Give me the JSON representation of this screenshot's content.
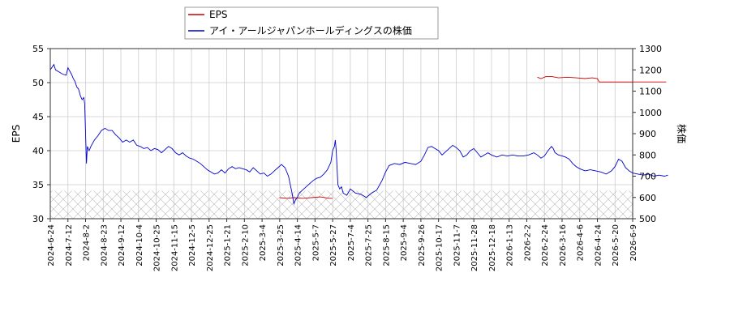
{
  "chart_data": {
    "type": "line",
    "title": "",
    "legend_position": "top-left",
    "grid": true,
    "x_tick_labels": [
      "2024-6-24",
      "2024-7-12",
      "2024-8-2",
      "2024-8-23",
      "2024-9-12",
      "2024-10-4",
      "2024-10-25",
      "2024-11-15",
      "2024-12-5",
      "2024-12-25",
      "2025-1-21",
      "2025-2-10",
      "2025-3-4",
      "2025-3-25",
      "2025-4-14",
      "2025-5-7",
      "2025-5-27",
      "2025-7-4",
      "2025-7-25",
      "2025-8-15",
      "2025-9-4",
      "2025-9-26",
      "2025-10-17",
      "2025-11-7",
      "2025-11-28",
      "2025-12-18",
      "2026-1-13",
      "2026-2-2",
      "2026-2-24",
      "2026-3-16",
      "2026-4-6",
      "2026-4-24",
      "2026-5-20",
      "2026-6-9"
    ],
    "y_left": {
      "label": "EPS",
      "ylim": [
        30,
        55
      ],
      "ticks": [
        30,
        35,
        40,
        45,
        50,
        55
      ]
    },
    "y_right": {
      "label": "株価",
      "ylim": [
        500,
        1300
      ],
      "ticks": [
        500,
        600,
        700,
        800,
        900,
        1000,
        1100,
        1200,
        1300
      ]
    },
    "series": [
      {
        "name": "EPS",
        "axis": "left",
        "color": "#cc0000",
        "points": [
          [
            13.0,
            33.1
          ],
          [
            13.4,
            33.0
          ],
          [
            13.8,
            33.1
          ],
          [
            14.3,
            33.0
          ],
          [
            14.8,
            33.1
          ],
          [
            15.3,
            33.2
          ],
          [
            15.8,
            33.0
          ],
          [
            16.0,
            33.0
          ],
          [
            27.6,
            50.8
          ],
          [
            27.8,
            50.6
          ],
          [
            28.1,
            50.9
          ],
          [
            28.4,
            50.9
          ],
          [
            28.8,
            50.7
          ],
          [
            29.3,
            50.8
          ],
          [
            29.8,
            50.7
          ],
          [
            30.3,
            50.6
          ],
          [
            30.7,
            50.7
          ],
          [
            31.0,
            50.6
          ],
          [
            31.1,
            50.1
          ],
          [
            32.0,
            50.1
          ],
          [
            33.0,
            50.1
          ],
          [
            34.0,
            50.1
          ],
          [
            34.9,
            50.1
          ]
        ]
      },
      {
        "name": "アイ・アールジャパンホールディングスの株価",
        "axis": "right",
        "color": "#0000cc",
        "points": [
          [
            0.0,
            1200
          ],
          [
            0.2,
            1225
          ],
          [
            0.3,
            1200
          ],
          [
            0.5,
            1190
          ],
          [
            0.7,
            1180
          ],
          [
            0.9,
            1175
          ],
          [
            1.0,
            1210
          ],
          [
            1.1,
            1195
          ],
          [
            1.2,
            1180
          ],
          [
            1.3,
            1160
          ],
          [
            1.4,
            1145
          ],
          [
            1.5,
            1120
          ],
          [
            1.6,
            1110
          ],
          [
            1.7,
            1080
          ],
          [
            1.8,
            1060
          ],
          [
            1.9,
            1070
          ],
          [
            1.95,
            1040
          ],
          [
            2.0,
            900
          ],
          [
            2.05,
            760
          ],
          [
            2.1,
            840
          ],
          [
            2.2,
            820
          ],
          [
            2.3,
            840
          ],
          [
            2.5,
            870
          ],
          [
            2.7,
            890
          ],
          [
            2.9,
            915
          ],
          [
            3.1,
            925
          ],
          [
            3.3,
            915
          ],
          [
            3.5,
            915
          ],
          [
            3.7,
            895
          ],
          [
            3.9,
            880
          ],
          [
            4.1,
            860
          ],
          [
            4.3,
            870
          ],
          [
            4.5,
            860
          ],
          [
            4.7,
            870
          ],
          [
            4.9,
            845
          ],
          [
            5.1,
            840
          ],
          [
            5.3,
            830
          ],
          [
            5.5,
            835
          ],
          [
            5.7,
            820
          ],
          [
            5.9,
            830
          ],
          [
            6.1,
            825
          ],
          [
            6.3,
            810
          ],
          [
            6.5,
            825
          ],
          [
            6.7,
            840
          ],
          [
            6.9,
            830
          ],
          [
            7.1,
            810
          ],
          [
            7.3,
            800
          ],
          [
            7.5,
            810
          ],
          [
            7.7,
            795
          ],
          [
            7.9,
            785
          ],
          [
            8.1,
            780
          ],
          [
            8.3,
            770
          ],
          [
            8.5,
            760
          ],
          [
            8.7,
            745
          ],
          [
            8.9,
            730
          ],
          [
            9.1,
            720
          ],
          [
            9.3,
            710
          ],
          [
            9.5,
            715
          ],
          [
            9.7,
            730
          ],
          [
            9.9,
            715
          ],
          [
            10.1,
            735
          ],
          [
            10.3,
            745
          ],
          [
            10.5,
            735
          ],
          [
            10.7,
            740
          ],
          [
            10.9,
            735
          ],
          [
            11.1,
            730
          ],
          [
            11.3,
            720
          ],
          [
            11.5,
            740
          ],
          [
            11.7,
            725
          ],
          [
            11.9,
            710
          ],
          [
            12.1,
            715
          ],
          [
            12.3,
            700
          ],
          [
            12.5,
            710
          ],
          [
            12.7,
            725
          ],
          [
            12.9,
            740
          ],
          [
            13.1,
            755
          ],
          [
            13.3,
            740
          ],
          [
            13.5,
            700
          ],
          [
            13.6,
            660
          ],
          [
            13.7,
            620
          ],
          [
            13.8,
            570
          ],
          [
            13.9,
            590
          ],
          [
            14.0,
            600
          ],
          [
            14.1,
            620
          ],
          [
            14.3,
            635
          ],
          [
            14.5,
            650
          ],
          [
            14.7,
            665
          ],
          [
            14.9,
            680
          ],
          [
            15.1,
            690
          ],
          [
            15.3,
            695
          ],
          [
            15.5,
            710
          ],
          [
            15.7,
            730
          ],
          [
            15.9,
            765
          ],
          [
            16.0,
            820
          ],
          [
            16.1,
            840
          ],
          [
            16.15,
            870
          ],
          [
            16.2,
            820
          ],
          [
            16.3,
            660
          ],
          [
            16.4,
            640
          ],
          [
            16.5,
            650
          ],
          [
            16.6,
            620
          ],
          [
            16.8,
            610
          ],
          [
            17.0,
            640
          ],
          [
            17.3,
            620
          ],
          [
            17.6,
            615
          ],
          [
            17.9,
            600
          ],
          [
            18.2,
            620
          ],
          [
            18.5,
            635
          ],
          [
            18.8,
            680
          ],
          [
            19.0,
            720
          ],
          [
            19.2,
            750
          ],
          [
            19.5,
            760
          ],
          [
            19.8,
            755
          ],
          [
            20.1,
            765
          ],
          [
            20.4,
            760
          ],
          [
            20.7,
            755
          ],
          [
            21.0,
            770
          ],
          [
            21.2,
            800
          ],
          [
            21.4,
            835
          ],
          [
            21.6,
            840
          ],
          [
            21.8,
            830
          ],
          [
            22.0,
            820
          ],
          [
            22.2,
            800
          ],
          [
            22.4,
            815
          ],
          [
            22.6,
            830
          ],
          [
            22.8,
            845
          ],
          [
            23.0,
            835
          ],
          [
            23.2,
            820
          ],
          [
            23.4,
            790
          ],
          [
            23.6,
            800
          ],
          [
            23.8,
            820
          ],
          [
            24.0,
            830
          ],
          [
            24.2,
            810
          ],
          [
            24.4,
            790
          ],
          [
            24.6,
            800
          ],
          [
            24.8,
            810
          ],
          [
            25.0,
            800
          ],
          [
            25.3,
            790
          ],
          [
            25.6,
            800
          ],
          [
            25.9,
            795
          ],
          [
            26.2,
            800
          ],
          [
            26.5,
            795
          ],
          [
            26.8,
            795
          ],
          [
            27.1,
            800
          ],
          [
            27.4,
            810
          ],
          [
            27.6,
            800
          ],
          [
            27.8,
            785
          ],
          [
            28.0,
            795
          ],
          [
            28.2,
            820
          ],
          [
            28.4,
            840
          ],
          [
            28.5,
            830
          ],
          [
            28.6,
            810
          ],
          [
            28.8,
            800
          ],
          [
            29.0,
            795
          ],
          [
            29.2,
            790
          ],
          [
            29.4,
            780
          ],
          [
            29.6,
            760
          ],
          [
            29.8,
            745
          ],
          [
            30.0,
            735
          ],
          [
            30.3,
            725
          ],
          [
            30.6,
            730
          ],
          [
            30.9,
            725
          ],
          [
            31.2,
            720
          ],
          [
            31.5,
            710
          ],
          [
            31.8,
            725
          ],
          [
            32.0,
            745
          ],
          [
            32.2,
            780
          ],
          [
            32.4,
            770
          ],
          [
            32.6,
            740
          ],
          [
            32.8,
            725
          ],
          [
            33.0,
            715
          ],
          [
            33.3,
            710
          ],
          [
            33.6,
            705
          ],
          [
            33.9,
            710
          ],
          [
            34.2,
            700
          ],
          [
            34.5,
            705
          ],
          [
            34.8,
            700
          ],
          [
            35.0,
            705
          ]
        ]
      }
    ]
  }
}
